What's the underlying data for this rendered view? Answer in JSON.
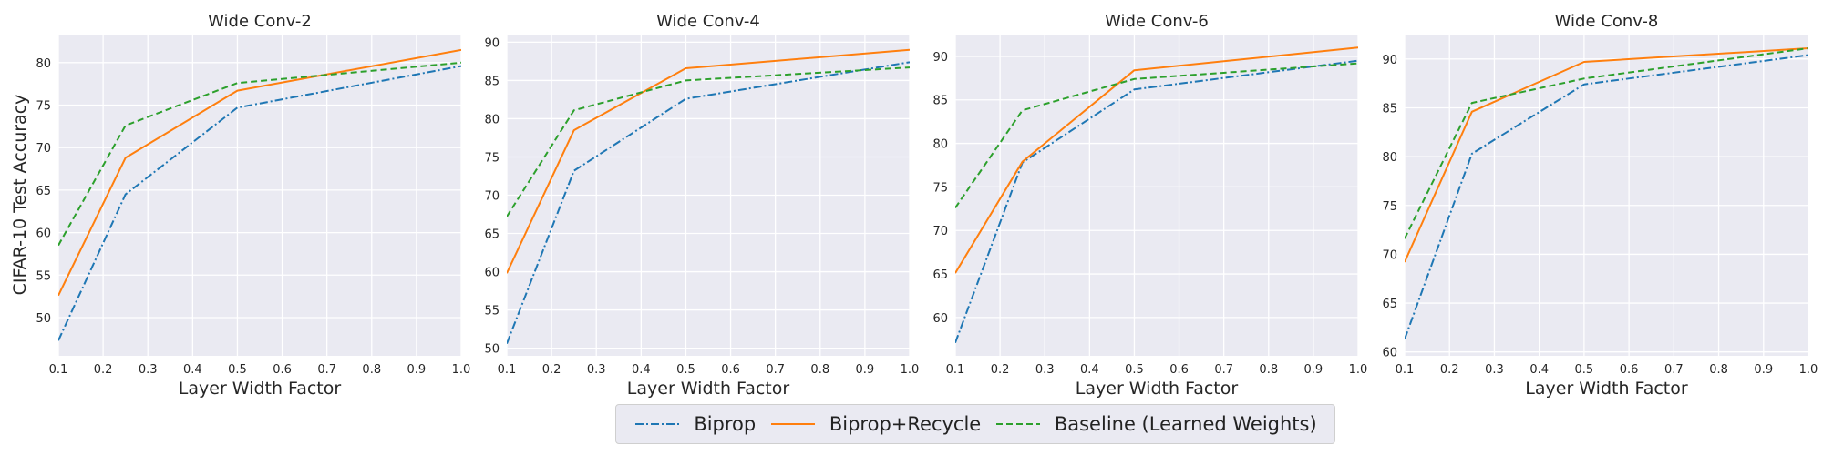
{
  "figure": {
    "y_axis_label": "CIFAR-10 Test Accuracy",
    "colors": {
      "plot_bg": "#eaeaf2",
      "grid": "#ffffff",
      "text": "#262626"
    }
  },
  "legend": {
    "placement": "bottom-center",
    "entries": [
      {
        "label": "Biprop",
        "color": "#1f77b4",
        "style": "dashdot"
      },
      {
        "label": "Biprop+Recycle",
        "color": "#ff7f0e",
        "style": "solid"
      },
      {
        "label": "Baseline (Learned Weights)",
        "color": "#2ca02c",
        "style": "dashed"
      }
    ]
  },
  "chart_data": [
    {
      "type": "line",
      "title": "Wide Conv-2",
      "xlabel": "Layer Width Factor",
      "ylabel": "CIFAR-10 Test Accuracy",
      "xlim": [
        0.1,
        1.0
      ],
      "ylim": [
        45.5,
        83.3
      ],
      "xticks": [
        "0.1",
        "0.2",
        "0.3",
        "0.4",
        "0.5",
        "0.6",
        "0.7",
        "0.8",
        "0.9",
        "1.0"
      ],
      "yticks": [
        50,
        55,
        60,
        65,
        70,
        75,
        80
      ],
      "x": [
        0.1,
        0.25,
        0.5,
        1.0
      ],
      "series": [
        {
          "name": "Biprop",
          "color": "#1f77b4",
          "style": "dashdot",
          "values": [
            47.3,
            64.5,
            74.7,
            79.6
          ]
        },
        {
          "name": "Biprop+Recycle",
          "color": "#ff7f0e",
          "style": "solid",
          "values": [
            52.6,
            68.8,
            76.7,
            81.5
          ]
        },
        {
          "name": "Baseline (Learned Weights)",
          "color": "#2ca02c",
          "style": "dashed",
          "values": [
            58.5,
            72.6,
            77.6,
            80.0
          ]
        }
      ]
    },
    {
      "type": "line",
      "title": "Wide Conv-4",
      "xlabel": "Layer Width Factor",
      "xlim": [
        0.1,
        1.0
      ],
      "ylim": [
        49.0,
        91.0
      ],
      "xticks": [
        "0.1",
        "0.2",
        "0.3",
        "0.4",
        "0.5",
        "0.6",
        "0.7",
        "0.8",
        "0.9",
        "1.0"
      ],
      "yticks": [
        50,
        55,
        60,
        65,
        70,
        75,
        80,
        85,
        90
      ],
      "x": [
        0.1,
        0.25,
        0.5,
        1.0
      ],
      "series": [
        {
          "name": "Biprop",
          "color": "#1f77b4",
          "style": "dashdot",
          "values": [
            50.6,
            73.2,
            82.6,
            87.4
          ]
        },
        {
          "name": "Biprop+Recycle",
          "color": "#ff7f0e",
          "style": "solid",
          "values": [
            59.8,
            78.5,
            86.6,
            89.0
          ]
        },
        {
          "name": "Baseline (Learned Weights)",
          "color": "#2ca02c",
          "style": "dashed",
          "values": [
            67.2,
            81.1,
            85.0,
            86.7
          ]
        }
      ]
    },
    {
      "type": "line",
      "title": "Wide Conv-6",
      "xlabel": "Layer Width Factor",
      "xlim": [
        0.1,
        1.0
      ],
      "ylim": [
        55.6,
        92.5
      ],
      "xticks": [
        "0.1",
        "0.2",
        "0.3",
        "0.4",
        "0.5",
        "0.6",
        "0.7",
        "0.8",
        "0.9",
        "1.0"
      ],
      "yticks": [
        60,
        65,
        70,
        75,
        80,
        85,
        90
      ],
      "x": [
        0.1,
        0.25,
        0.5,
        1.0
      ],
      "series": [
        {
          "name": "Biprop",
          "color": "#1f77b4",
          "style": "dashdot",
          "values": [
            57.1,
            77.8,
            86.2,
            89.5
          ]
        },
        {
          "name": "Biprop+Recycle",
          "color": "#ff7f0e",
          "style": "solid",
          "values": [
            65.1,
            77.9,
            88.4,
            91.0
          ]
        },
        {
          "name": "Baseline (Learned Weights)",
          "color": "#2ca02c",
          "style": "dashed",
          "values": [
            72.6,
            83.8,
            87.4,
            89.2
          ]
        }
      ]
    },
    {
      "type": "line",
      "title": "Wide Conv-8",
      "xlabel": "Layer Width Factor",
      "xlim": [
        0.1,
        1.0
      ],
      "ylim": [
        59.6,
        92.5
      ],
      "xticks": [
        "0.1",
        "0.2",
        "0.3",
        "0.4",
        "0.5",
        "0.6",
        "0.7",
        "0.8",
        "0.9",
        "1.0"
      ],
      "yticks": [
        60,
        65,
        70,
        75,
        80,
        85,
        90
      ],
      "x": [
        0.1,
        0.25,
        0.5,
        1.0
      ],
      "series": [
        {
          "name": "Biprop",
          "color": "#1f77b4",
          "style": "dashdot",
          "values": [
            61.3,
            80.3,
            87.4,
            90.4
          ]
        },
        {
          "name": "Biprop+Recycle",
          "color": "#ff7f0e",
          "style": "solid",
          "values": [
            69.2,
            84.6,
            89.7,
            91.1
          ]
        },
        {
          "name": "Baseline (Learned Weights)",
          "color": "#2ca02c",
          "style": "dashed",
          "values": [
            71.6,
            85.5,
            88.0,
            91.1
          ]
        }
      ]
    }
  ]
}
